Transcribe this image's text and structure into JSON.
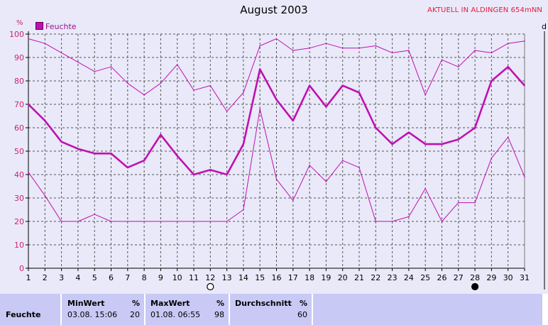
{
  "title": "August 2003",
  "badge": "AKTUELL IN ALDINGEN 654mNN",
  "unit_left": "%",
  "unit_right": "d",
  "legend": {
    "label": "Feuchte",
    "color": "#c010b0"
  },
  "chart_data": {
    "type": "line",
    "title": "August 2003",
    "x": [
      1,
      2,
      3,
      4,
      5,
      6,
      7,
      8,
      9,
      10,
      11,
      12,
      13,
      14,
      15,
      16,
      17,
      18,
      19,
      20,
      21,
      22,
      23,
      24,
      25,
      26,
      27,
      28,
      29,
      30,
      31
    ],
    "xlim": [
      1,
      31
    ],
    "ylim": [
      0,
      100
    ],
    "yticks": [
      0,
      10,
      20,
      30,
      40,
      50,
      60,
      70,
      80,
      90,
      100
    ],
    "grid": true,
    "series": [
      {
        "role": "max",
        "values": [
          98,
          96,
          92,
          88,
          84,
          86,
          79,
          74,
          79,
          87,
          76,
          78,
          67,
          75,
          95,
          98,
          93,
          94,
          96,
          94,
          94,
          95,
          92,
          93,
          74,
          89,
          86,
          93,
          92,
          96,
          97
        ]
      },
      {
        "name": "Feuchte",
        "role": "mean",
        "values": [
          70,
          63,
          54,
          51,
          49,
          49,
          43,
          46,
          57,
          48,
          40,
          42,
          40,
          53,
          85,
          72,
          63,
          78,
          69,
          78,
          75,
          60,
          53,
          58,
          53,
          53,
          55,
          60,
          80,
          86,
          78
        ]
      },
      {
        "role": "min",
        "values": [
          41,
          31,
          20,
          20,
          23,
          20,
          20,
          20,
          20,
          20,
          20,
          20,
          20,
          25,
          68,
          38,
          29,
          44,
          37,
          46,
          43,
          20,
          20,
          22,
          34,
          20,
          28,
          28,
          47,
          56,
          39
        ]
      }
    ],
    "moon_markers": [
      {
        "day": 12,
        "phase": "full"
      },
      {
        "day": 28,
        "phase": "new"
      }
    ]
  },
  "summary": {
    "row_label": "Feuchte",
    "min": {
      "header": "MinWert",
      "unit": "%",
      "when": "03.08.  15:06",
      "value": "20"
    },
    "max": {
      "header": "MaxWert",
      "unit": "%",
      "when": "01.08.  06:55",
      "value": "98"
    },
    "avg": {
      "header": "Durchschnitt",
      "unit": "%",
      "value": "60"
    }
  }
}
